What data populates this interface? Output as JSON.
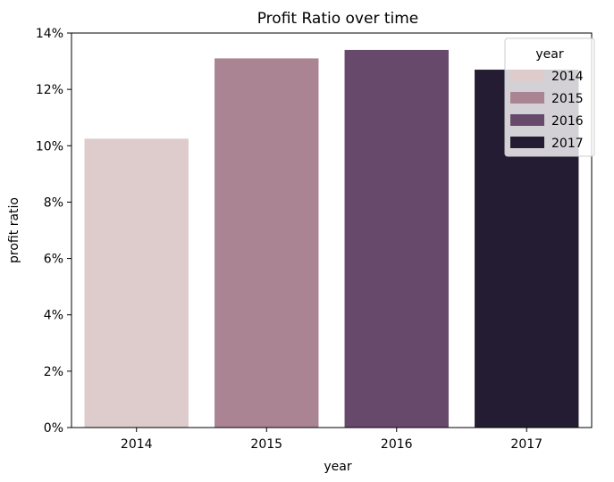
{
  "chart_data": {
    "type": "bar",
    "title": "Profit Ratio over time",
    "xlabel": "year",
    "ylabel": "profit ratio",
    "categories": [
      "2014",
      "2015",
      "2016",
      "2017"
    ],
    "values": [
      10.25,
      13.1,
      13.4,
      12.7
    ],
    "ylim": [
      0,
      14
    ],
    "yticks": [
      0,
      2,
      4,
      6,
      8,
      10,
      12,
      14
    ],
    "ytick_labels": [
      "0%",
      "2%",
      "4%",
      "6%",
      "8%",
      "10%",
      "12%",
      "14%"
    ],
    "grid": false,
    "colors": [
      "#ddcccb",
      "#ab8493",
      "#674a6b",
      "#241c32"
    ],
    "legend": {
      "title": "year",
      "placement": "top-right",
      "entries": [
        "2014",
        "2015",
        "2016",
        "2017"
      ]
    }
  }
}
